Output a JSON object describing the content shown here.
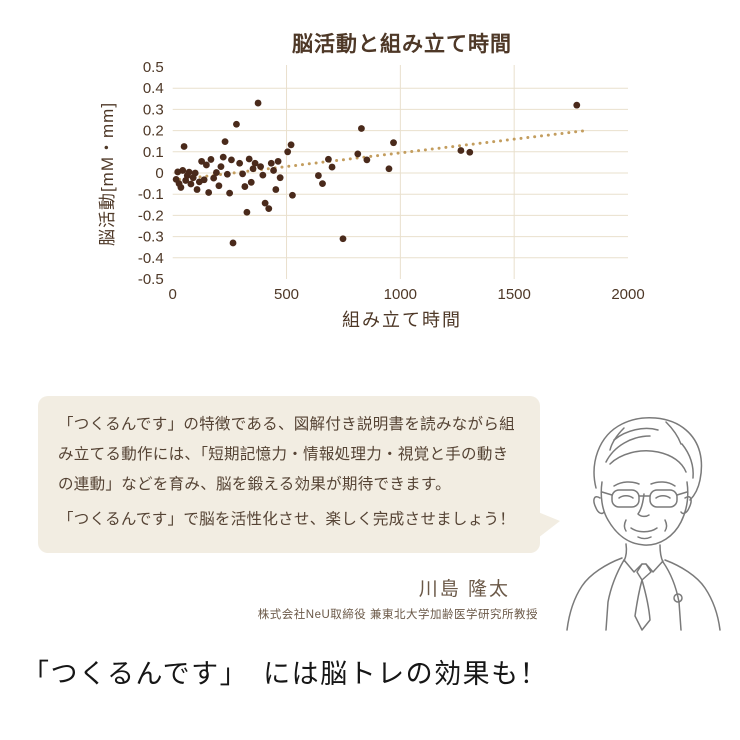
{
  "page": {
    "background": "#ffffff"
  },
  "chart_data": {
    "type": "scatter",
    "title": "脳活動と組み立て時間",
    "xlabel": "組み立て時間",
    "ylabel": "脳活動[mM・mm]",
    "xlim": [
      0,
      2000
    ],
    "ylim": [
      -0.5,
      0.5
    ],
    "xtick_values": [
      0,
      500,
      1000,
      1500,
      2000
    ],
    "xtick_labels": [
      "0",
      "500",
      "1000",
      "1500",
      "2000"
    ],
    "ytick_values": [
      0.5,
      0.4,
      0.3,
      0.2,
      0.1,
      0,
      -0.1,
      -0.2,
      -0.3,
      -0.4,
      -0.5
    ],
    "ytick_labels": [
      "0.5",
      "0.4",
      "0.3",
      "0.2",
      "0.1",
      "0",
      "-0.1",
      "-0.2",
      "-0.3",
      "-0.4",
      "-0.5"
    ],
    "x_gridline_values": [
      500,
      1000,
      1500
    ],
    "y_gridline_values": [
      0.4,
      0.3,
      0.2,
      0.1,
      0,
      -0.1,
      -0.2,
      -0.3,
      -0.4
    ],
    "grid": true,
    "legend": "none",
    "points": [
      [
        15,
        -0.03
      ],
      [
        22,
        0.005
      ],
      [
        28,
        -0.05
      ],
      [
        36,
        -0.068
      ],
      [
        44,
        0.012
      ],
      [
        50,
        0.125
      ],
      [
        57,
        -0.035
      ],
      [
        64,
        -0.012
      ],
      [
        72,
        0.004
      ],
      [
        80,
        -0.052
      ],
      [
        90,
        -0.022
      ],
      [
        99,
        0.0
      ],
      [
        107,
        -0.078
      ],
      [
        117,
        -0.042
      ],
      [
        127,
        0.055
      ],
      [
        138,
        -0.032
      ],
      [
        148,
        0.038
      ],
      [
        158,
        -0.092
      ],
      [
        168,
        0.064
      ],
      [
        180,
        -0.024
      ],
      [
        192,
        0.002
      ],
      [
        203,
        -0.06
      ],
      [
        212,
        0.03
      ],
      [
        222,
        0.075
      ],
      [
        230,
        0.148
      ],
      [
        240,
        -0.006
      ],
      [
        250,
        -0.095
      ],
      [
        258,
        0.062
      ],
      [
        265,
        -0.33
      ],
      [
        280,
        0.23
      ],
      [
        294,
        0.046
      ],
      [
        307,
        -0.004
      ],
      [
        317,
        -0.064
      ],
      [
        326,
        -0.185
      ],
      [
        336,
        0.066
      ],
      [
        345,
        -0.044
      ],
      [
        353,
        0.02
      ],
      [
        362,
        0.046
      ],
      [
        375,
        0.33
      ],
      [
        386,
        0.03
      ],
      [
        396,
        -0.01
      ],
      [
        406,
        -0.142
      ],
      [
        422,
        -0.168
      ],
      [
        433,
        0.046
      ],
      [
        443,
        0.012
      ],
      [
        453,
        -0.078
      ],
      [
        463,
        0.055
      ],
      [
        472,
        -0.022
      ],
      [
        505,
        0.1
      ],
      [
        520,
        0.133
      ],
      [
        526,
        -0.105
      ],
      [
        640,
        -0.012
      ],
      [
        658,
        -0.05
      ],
      [
        684,
        0.065
      ],
      [
        700,
        0.028
      ],
      [
        748,
        -0.31
      ],
      [
        813,
        0.09
      ],
      [
        829,
        0.21
      ],
      [
        853,
        0.062
      ],
      [
        950,
        0.02
      ],
      [
        970,
        0.143
      ],
      [
        1266,
        0.106
      ],
      [
        1305,
        0.098
      ],
      [
        1775,
        0.32
      ]
    ],
    "trendline": {
      "style": "dotted",
      "x_start": 30,
      "x_end": 1810,
      "intercept": -0.034,
      "slope": 0.000129
    },
    "colors": {
      "point": "#4a2a1b",
      "trend": "#c39d5e",
      "grid": "#e9e0cd",
      "axis_text": "#4e3827",
      "title_text": "#4e3827"
    }
  },
  "speech_bubble": {
    "background": "#f2ede2",
    "text_color": "#554334",
    "lines": [
      "「つくるんです」の特徴である、図解付き説明書を読みながら組",
      "み立てる動作には、「短期記憶力・情報処理力・視覚と手の動き",
      "の連動」などを育み、脳を鍛える効果が期待できます。",
      "「つくるんです」で脳を活性化させ、楽しく完成させましょう！"
    ]
  },
  "author": {
    "name": "川島 隆太",
    "title": "株式会社NeU取締役 兼東北大学加齢医学研究所教授"
  },
  "headline": {
    "text": "「つくるんです」 には脳トレの効果も！"
  },
  "portrait": {
    "illustration": "professor-line-art-portrait"
  }
}
